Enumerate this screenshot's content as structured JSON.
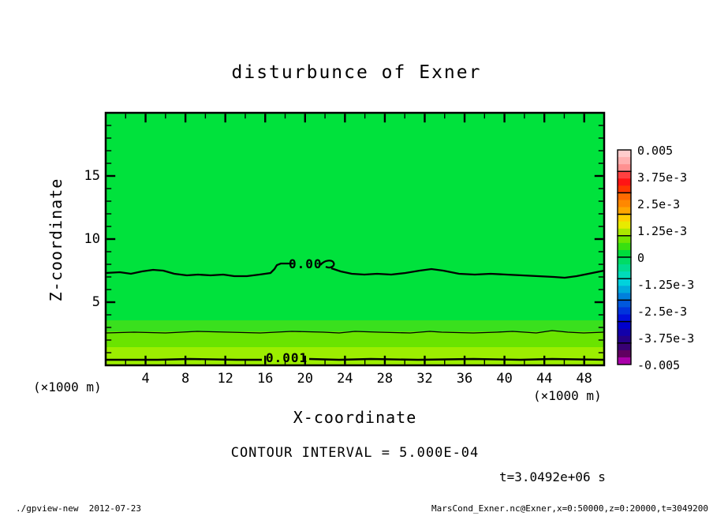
{
  "title": "disturbunce of Exner",
  "plot": {
    "x_axis": {
      "label": "X-coordinate",
      "unit": "(×1000 m)",
      "tick_values": [
        4,
        8,
        12,
        16,
        20,
        24,
        28,
        32,
        36,
        40,
        44,
        48
      ],
      "range_min": 0,
      "range_max": 50,
      "minor_step": 2
    },
    "y_axis": {
      "label": "Z-coordinate",
      "unit": "(×1000 m)",
      "tick_values": [
        5,
        10,
        15
      ],
      "range_min": 0,
      "range_max": 20,
      "minor_step": 1
    },
    "field_color": "#00e23c",
    "bands": [
      {
        "z_from": 2.69,
        "z_to": 3.56,
        "color": "#3ae01e"
      },
      {
        "z_from": 1.44,
        "z_to": 2.69,
        "color": "#6ae400"
      },
      {
        "z_from": 0.0,
        "z_to": 1.44,
        "color": "#9cee00"
      }
    ],
    "contour_labels": [
      {
        "text": "0.00"
      },
      {
        "text": "0.001"
      }
    ]
  },
  "colorbar": {
    "labels": [
      "0.005",
      "3.75e-3",
      "2.5e-3",
      "1.25e-3",
      "0",
      "-1.25e-3",
      "-2.5e-3",
      "-3.75e-3",
      "-0.005"
    ],
    "segments": [
      [
        "#ffcccc",
        "#ffb0b0",
        "#ff9090"
      ],
      [
        "#ff4040",
        "#ff1414",
        "#ff3800"
      ],
      [
        "#ff6a00",
        "#ff8800",
        "#ffa600"
      ],
      [
        "#ffd000",
        "#e8ea00",
        "#aae800"
      ],
      [
        "#70e600",
        "#38e010",
        "#00dc3c"
      ],
      [
        "#00dc66",
        "#00dc90",
        "#00dcba"
      ],
      [
        "#00d2dc",
        "#00aadc",
        "#0080dc"
      ],
      [
        "#0058dc",
        "#0034dc",
        "#0010dc"
      ],
      [
        "#0000cc",
        "#1200aa",
        "#260088"
      ],
      [
        "#380074",
        "#600060",
        "#aa00aa"
      ]
    ]
  },
  "annotations": {
    "contour_interval": "CONTOUR INTERVAL = 5.000E-04",
    "time": "t=3.0492e+06 s"
  },
  "footer": {
    "left": "./gpview-new  2012-07-23",
    "right": "MarsCond_Exner.nc@Exner,x=0:50000,z=0:20000,t=3049200"
  },
  "chart_data": {
    "type": "heatmap",
    "title": "disturbunce of Exner",
    "xlabel": "X-coordinate (×1000 m)",
    "ylabel": "Z-coordinate (×1000 m)",
    "xlim": [
      0,
      50
    ],
    "ylim": [
      0,
      20
    ],
    "x_ticks": [
      4,
      8,
      12,
      16,
      20,
      24,
      28,
      32,
      36,
      40,
      44,
      48
    ],
    "y_ticks": [
      5,
      10,
      15
    ],
    "colorbar_tick_labels": [
      "0.005",
      "3.75e-3",
      "2.5e-3",
      "1.25e-3",
      "0",
      "-1.25e-3",
      "-2.5e-3",
      "-3.75e-3",
      "-0.005"
    ],
    "colorbar_range": [
      -0.005,
      0.005
    ],
    "contour_interval": 0.0005,
    "time_label": "t=3.0492e+06 s",
    "contour_lines": [
      {
        "level": 0.0,
        "label": "0.00",
        "mean_z_km": 7.3,
        "style": "thick wavy"
      },
      {
        "level": 0.0005,
        "label": null,
        "mean_z_km": 2.6,
        "style": "thin"
      },
      {
        "level": 0.001,
        "label": "0.001",
        "mean_z_km": 0.45,
        "style": "thick"
      }
    ],
    "field_bands": [
      {
        "value_range": [
          -0.0005,
          0.0005
        ],
        "z_km": [
          3.6,
          20
        ],
        "color": "#00e23c",
        "note": "near-zero disturbance over most of domain; 0.00 contour crosses at z≈7.3"
      },
      {
        "value_range": [
          0.0005,
          0.001
        ],
        "z_km": [
          1.4,
          3.6
        ],
        "color": "#6ae400"
      },
      {
        "value_range": [
          0.001,
          0.0015
        ],
        "z_km": [
          0,
          1.4
        ],
        "color": "#9cee00",
        "note": "positive disturbance maximum near surface"
      }
    ]
  }
}
